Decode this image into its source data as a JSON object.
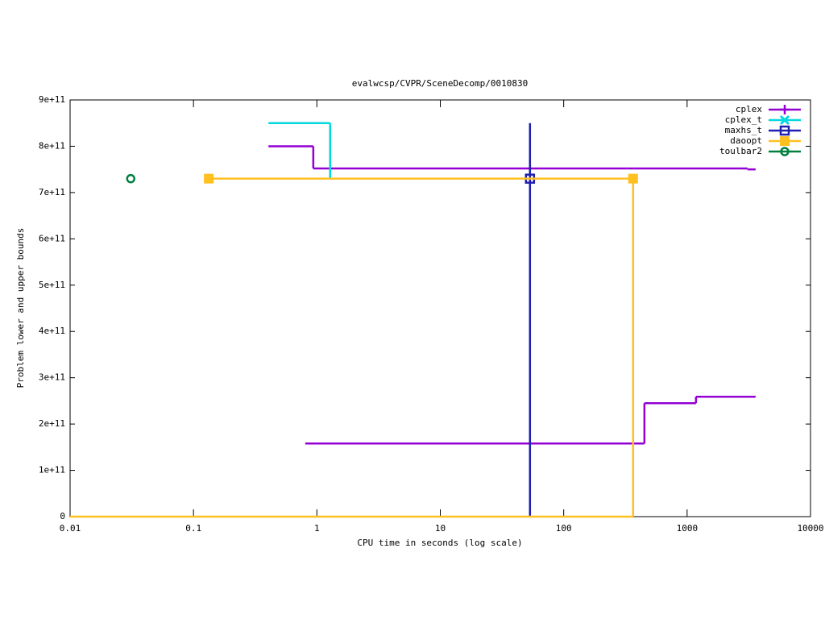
{
  "chart_data": {
    "type": "step",
    "title": "evalwcsp/CVPR/SceneDecomp/0010830",
    "x_label": "CPU time in seconds (log scale)",
    "y_label": "Problem lower and upper bounds",
    "xlog": true,
    "xlim": [
      0.01,
      10000
    ],
    "xticks": [
      0.01,
      0.1,
      1,
      10,
      100,
      1000,
      10000
    ],
    "ylim": [
      0,
      900000000000
    ],
    "yticks": [
      0,
      {
        "value": 100000000000,
        "label": "1e+11"
      },
      {
        "value": 200000000000,
        "label": "2e+11"
      },
      {
        "value": 300000000000,
        "label": "3e+11"
      },
      {
        "value": 400000000000,
        "label": "4e+11"
      },
      {
        "value": 500000000000,
        "label": "5e+11"
      },
      {
        "value": 600000000000,
        "label": "6e+11"
      },
      {
        "value": 700000000000,
        "label": "7e+11"
      },
      {
        "value": 800000000000,
        "label": "8e+11"
      },
      {
        "value": 900000000000,
        "label": "9e+11"
      }
    ],
    "legend": "top-right",
    "series": [
      {
        "name": "cplex",
        "color": "#9400d3",
        "marker": "plus",
        "x": [
          0.405,
          0.935,
          3090,
          3590,
          null,
          0.805,
          451,
          1180,
          3590
        ],
        "values": [
          800000000000,
          752000000000,
          750000000000,
          750000000000,
          null,
          158000000000,
          245000000000,
          259000000000,
          259000000000
        ],
        "markers": {
          "x": [],
          "values": []
        }
      },
      {
        "name": "cplex_t",
        "color": "#00d8e0",
        "marker": "cross",
        "x": [
          0.405,
          1.28
        ],
        "values": [
          850000000000,
          730000000000
        ],
        "markers": {
          "x": [],
          "values": []
        }
      },
      {
        "name": "maxhs_t",
        "color": "#2020b0",
        "marker": "square",
        "x": [
          53.3,
          53.3
        ],
        "values": [
          0,
          850000000000
        ],
        "markers": {
          "x": [
            53.3
          ],
          "values": [
            730000000000
          ]
        }
      },
      {
        "name": "daoopt",
        "color": "#ffc020",
        "marker": "filled-square",
        "x": [
          0.133,
          365,
          null,
          0.01,
          365
        ],
        "values": [
          730000000000,
          0,
          null,
          0,
          0
        ],
        "markers": {
          "x": [
            0.133,
            365
          ],
          "values": [
            730000000000,
            730000000000
          ]
        }
      },
      {
        "name": "toulbar2",
        "color": "#008040",
        "marker": "circle",
        "x": [
          0.031
        ],
        "values": [
          730000000000
        ],
        "markers": {
          "x": [
            0.031
          ],
          "values": [
            730000000000
          ]
        }
      }
    ]
  }
}
